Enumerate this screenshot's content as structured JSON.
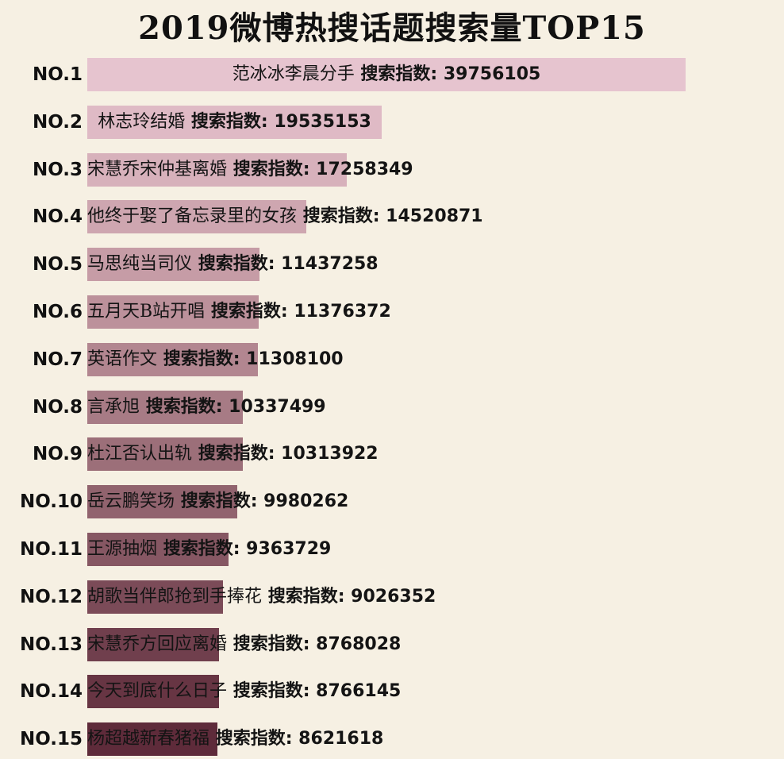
{
  "chart_data": {
    "type": "bar",
    "orientation": "horizontal",
    "title": "2019微博热搜话题搜索量TOP15",
    "xlim": [
      0,
      40000000
    ],
    "grid": false,
    "legend": "none",
    "value_prefix": "搜索指数: ",
    "bars": [
      {
        "rank": "NO.1",
        "topic": "范冰冰李晨分手",
        "value": 39756105,
        "color": "#e6c4cf"
      },
      {
        "rank": "NO.2",
        "topic": "林志玲结婚",
        "value": 19535153,
        "color": "#dfbac5"
      },
      {
        "rank": "NO.3",
        "topic": "宋慧乔宋仲基离婚",
        "value": 17258349,
        "color": "#d7b1bb"
      },
      {
        "rank": "NO.4",
        "topic": "他终于娶了备忘录里的女孩",
        "value": 14520871,
        "color": "#cea6b0"
      },
      {
        "rank": "NO.5",
        "topic": "马思纯当司仪",
        "value": 11437258,
        "color": "#c69ca6"
      },
      {
        "rank": "NO.6",
        "topic": "五月天B站开唱",
        "value": 11376372,
        "color": "#bc919b"
      },
      {
        "rank": "NO.7",
        "topic": "英语作文",
        "value": 11308100,
        "color": "#b28690"
      },
      {
        "rank": "NO.8",
        "topic": "言承旭",
        "value": 10337499,
        "color": "#a77b85"
      },
      {
        "rank": "NO.9",
        "topic": "杜江否认出轨",
        "value": 10313922,
        "color": "#9c6f79"
      },
      {
        "rank": "NO.10",
        "topic": "岳云鹏笑场",
        "value": 9980262,
        "color": "#91636e"
      },
      {
        "rank": "NO.11",
        "topic": "王源抽烟",
        "value": 9363729,
        "color": "#865763"
      },
      {
        "rank": "NO.12",
        "topic": "胡歌当伴郎抢到手捧花",
        "value": 9026352,
        "color": "#7b4b58"
      },
      {
        "rank": "NO.13",
        "topic": "宋慧乔方回应离婚",
        "value": 8768028,
        "color": "#703f4d"
      },
      {
        "rank": "NO.14",
        "topic": "今天到底什么日子",
        "value": 8766145,
        "color": "#673543"
      },
      {
        "rank": "NO.15",
        "topic": "杨超越新春猪福",
        "value": 8621618,
        "color": "#5e2b3a"
      }
    ]
  }
}
